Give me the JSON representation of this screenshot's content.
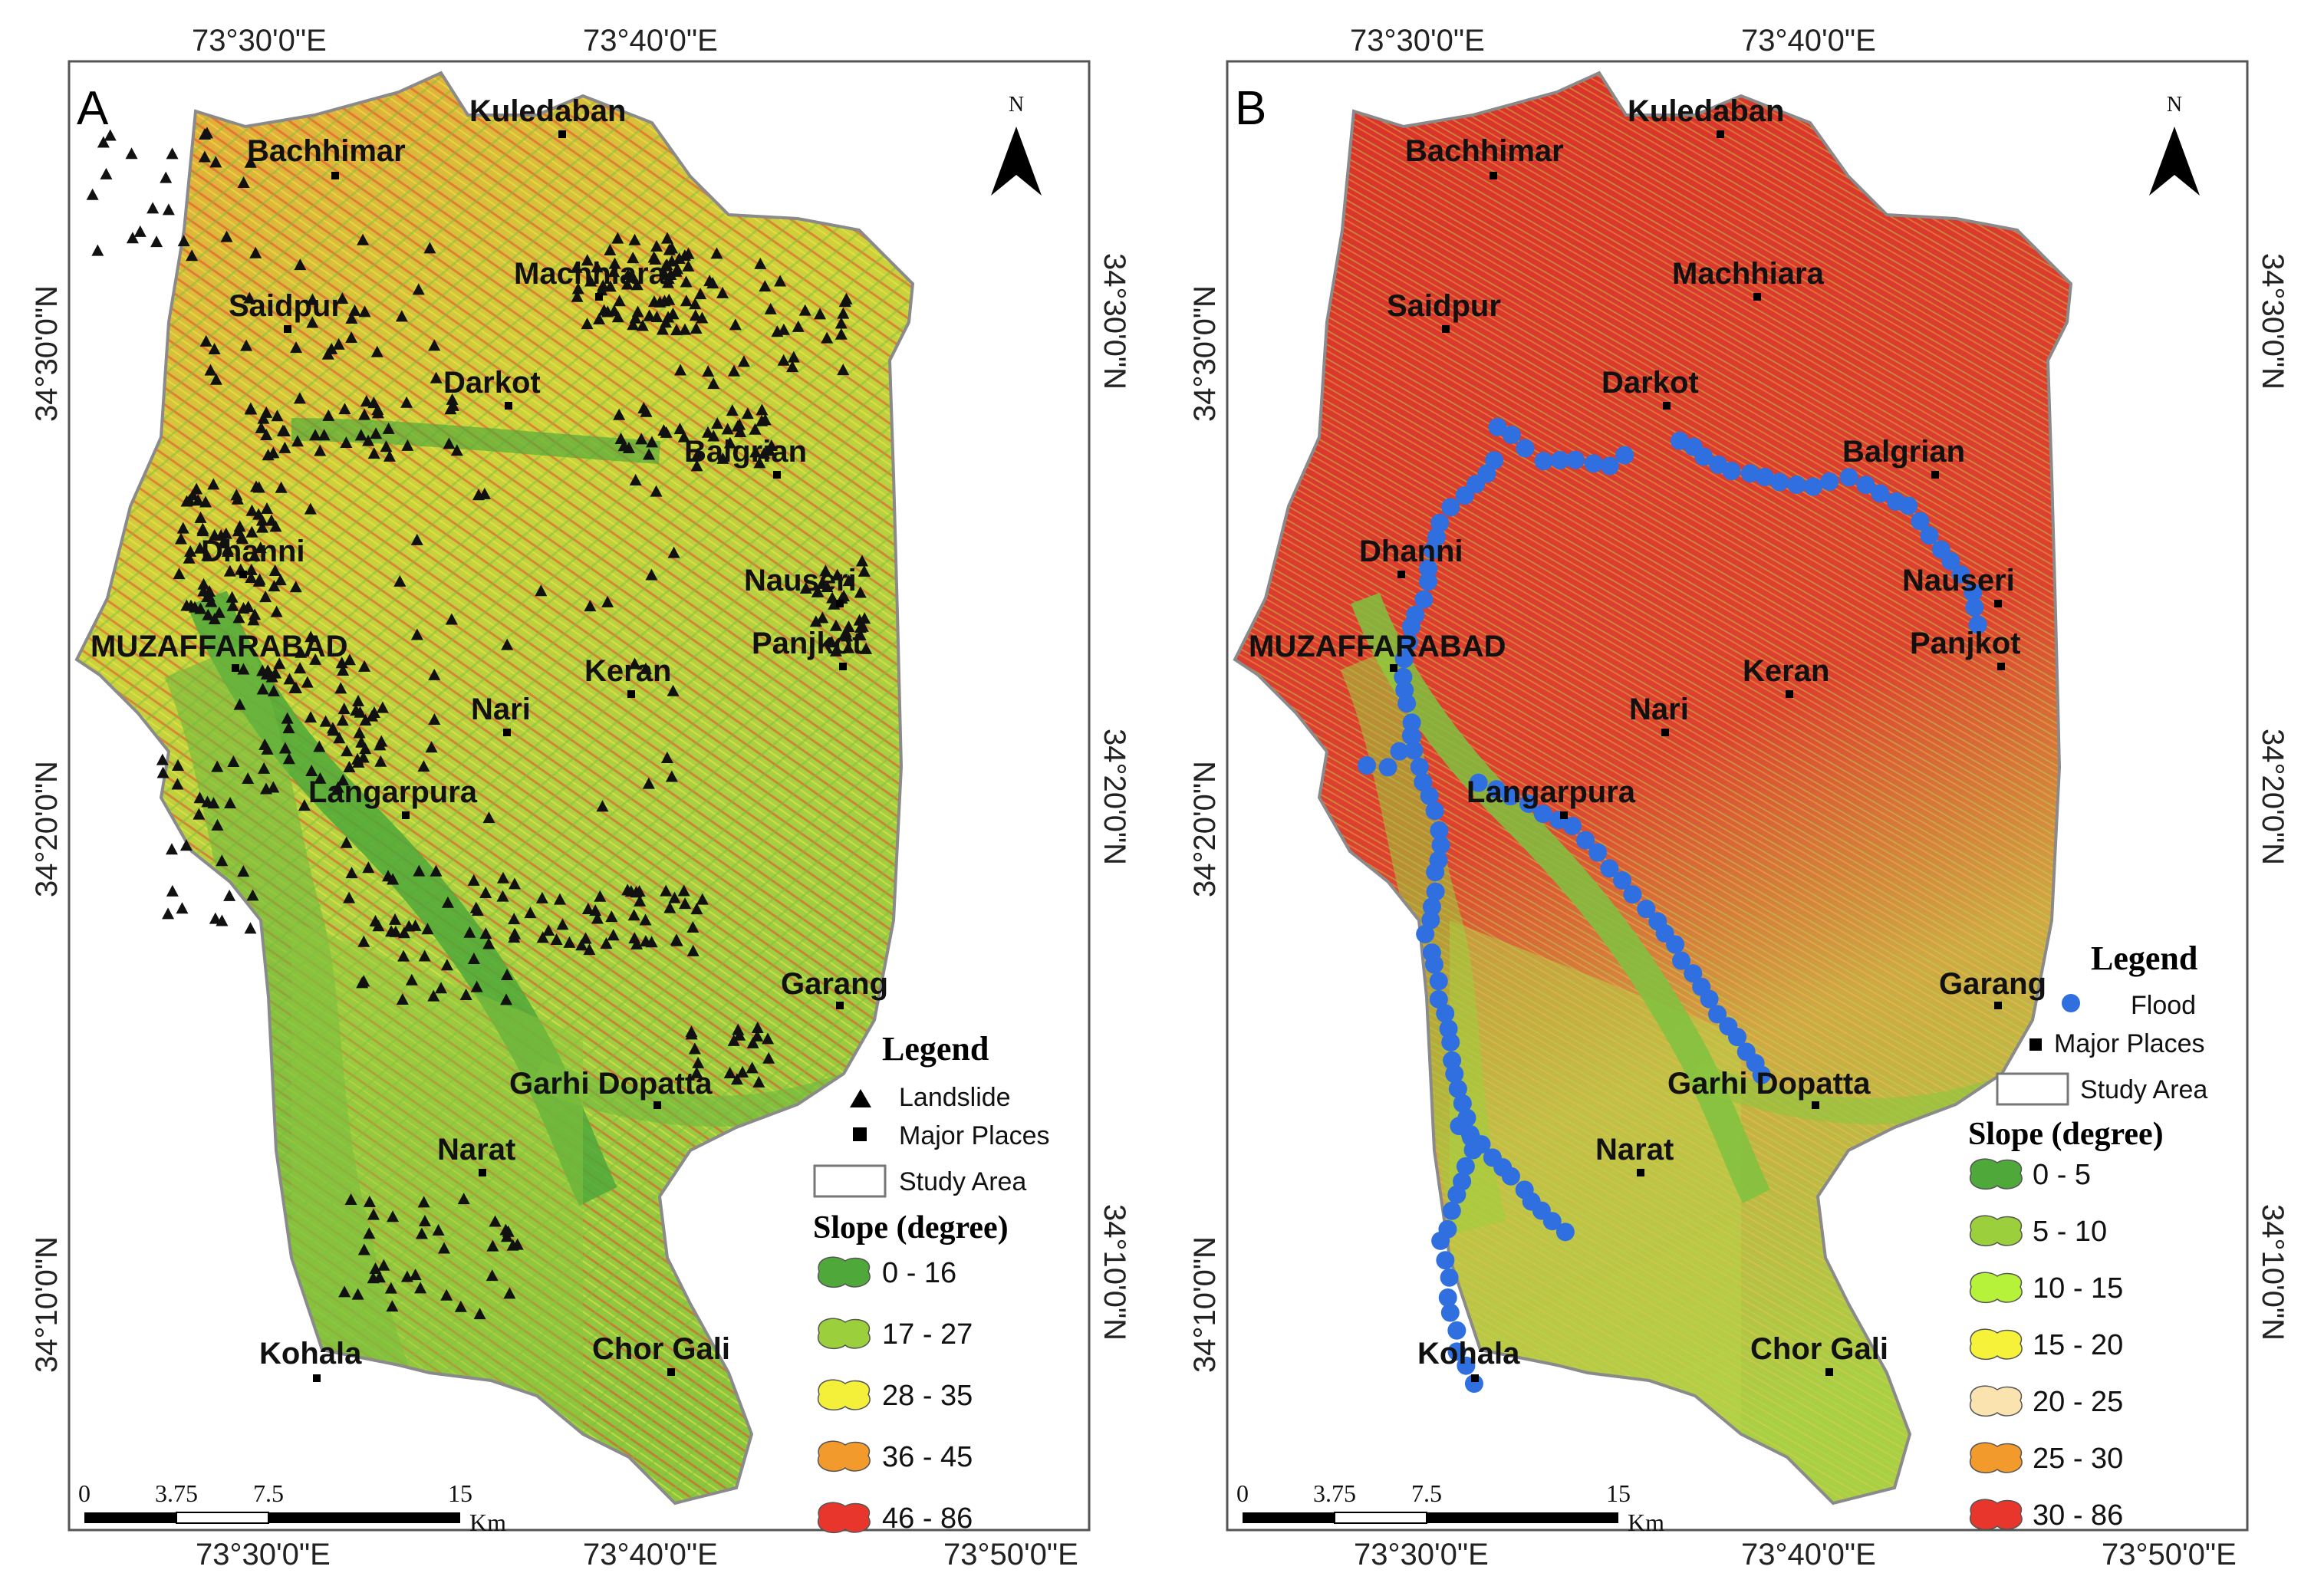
{
  "panels": [
    {
      "letter": "A",
      "top_ticks": [
        "73°30'0\"E",
        "73°40'0\"E"
      ],
      "bottom_ticks": [
        "73°30'0\"E",
        "73°40'0\"E",
        "73°50'0\"E"
      ],
      "left_ticks": [
        "34°30'0\"N",
        "34°20'0\"N",
        "34°10'0\"N"
      ],
      "right_ticks": [
        "34°30'0\"N",
        "34°20'0\"N",
        "34°10'0\"N"
      ],
      "north": "N",
      "places": [
        "Kuledaban",
        "Bachhimar",
        "Machhiara",
        "Saidpur",
        "Darkot",
        "Balgrian",
        "Dhanni",
        "Nauseri",
        "MUZAFFARABAD",
        "Panjkot",
        "Keran",
        "Nari",
        "Langarpura",
        "Garang",
        "Garhi Dopatta",
        "Narat",
        "Kohala",
        "Chor Gali"
      ],
      "legend": {
        "title": "Legend",
        "items": [
          "Landslide",
          "Major Places",
          "Study Area"
        ],
        "slope_title": "Slope (degree)",
        "classes": [
          {
            "label": "0 - 16",
            "color": "#4fa83a"
          },
          {
            "label": "17 - 27",
            "color": "#9ccf3c"
          },
          {
            "label": "28 - 35",
            "color": "#f4f03a"
          },
          {
            "label": "36 - 45",
            "color": "#f39a2c"
          },
          {
            "label": "46 - 86",
            "color": "#e8362c"
          }
        ]
      },
      "scale": {
        "ticks": [
          "0",
          "3.75",
          "7.5",
          "15"
        ],
        "unit": "Km"
      }
    },
    {
      "letter": "B",
      "top_ticks": [
        "73°30'0\"E",
        "73°40'0\"E"
      ],
      "bottom_ticks": [
        "73°30'0\"E",
        "73°40'0\"E",
        "73°50'0\"E"
      ],
      "left_ticks": [
        "34°30'0\"N",
        "34°20'0\"N",
        "34°10'0\"N"
      ],
      "right_ticks": [
        "34°30'0\"N",
        "34°20'0\"N",
        "34°10'0\"N"
      ],
      "north": "N",
      "places": [
        "Kuledaban",
        "Bachhimar",
        "Machhiara",
        "Saidpur",
        "Darkot",
        "Balgrian",
        "Dhanni",
        "Nauseri",
        "MUZAFFARABAD",
        "Panjkot",
        "Keran",
        "Nari",
        "Langarpura",
        "Garang",
        "Garhi Dopatta",
        "Narat",
        "Kohala",
        "Chor Gali"
      ],
      "legend": {
        "title": "Legend",
        "items": [
          "Flood",
          "Major Places",
          "Study Area"
        ],
        "slope_title": "Slope (degree)",
        "classes": [
          {
            "label": "0 - 5",
            "color": "#4fa83a"
          },
          {
            "label": "5 - 10",
            "color": "#9ccf3c"
          },
          {
            "label": "10 - 15",
            "color": "#b6f23a"
          },
          {
            "label": "15 - 20",
            "color": "#f6f23a"
          },
          {
            "label": "20 - 25",
            "color": "#fbe3b0"
          },
          {
            "label": "25 - 30",
            "color": "#f39a2c"
          },
          {
            "label": "30 - 86",
            "color": "#e8362c"
          }
        ]
      },
      "scale": {
        "ticks": [
          "0",
          "3.75",
          "7.5",
          "15"
        ],
        "unit": "Km"
      }
    }
  ],
  "colors": {
    "study_area_outline": "#8a8a8a",
    "landslide_marker": "#111111",
    "flood_marker": "#2f6fe0",
    "panel_a_base": "#c9cf3a",
    "panel_b_base": "#de3a2a"
  }
}
